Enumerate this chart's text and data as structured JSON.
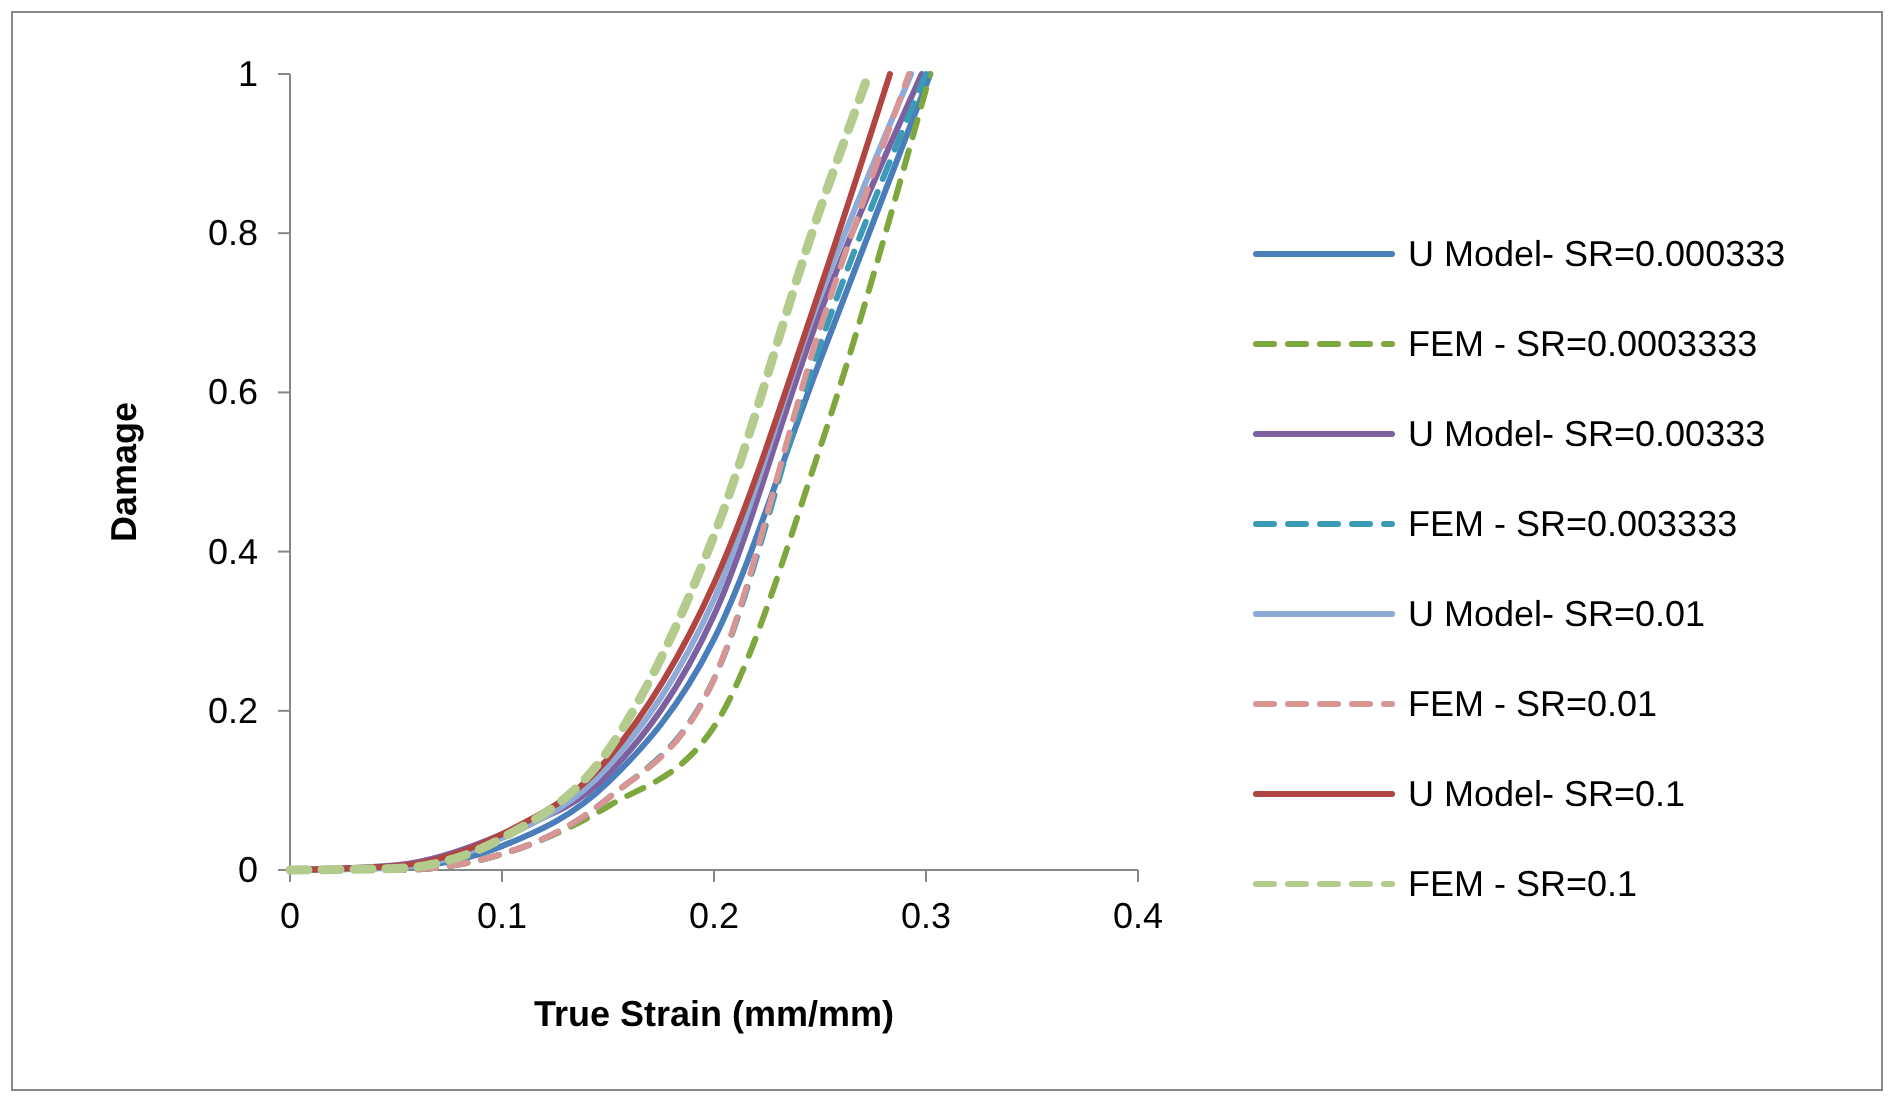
{
  "chart_data": {
    "type": "line",
    "xlabel": "True Strain (mm/mm)",
    "ylabel": "Damage",
    "xlim": [
      0,
      0.4
    ],
    "xticks": [
      0,
      0.1,
      0.2,
      0.3,
      0.4
    ],
    "ylim": [
      0,
      1
    ],
    "yticks": [
      0,
      0.2,
      0.4,
      0.6,
      0.8,
      1
    ],
    "grid": false,
    "legend": "right",
    "marker": "none",
    "series": [
      {
        "name": "U Model- SR=0.000333",
        "color": "#4a7ebb",
        "line_style": "solid",
        "x": [
          0,
          0.05,
          0.1,
          0.15,
          0.2,
          0.25,
          0.302
        ],
        "values": [
          0,
          0.003,
          0.03,
          0.11,
          0.29,
          0.64,
          1
        ]
      },
      {
        "name": "FEM - SR=0.0003333",
        "color": "#7ea83e",
        "line_style": "dashed",
        "x": [
          0,
          0.05,
          0.1,
          0.15,
          0.2,
          0.25,
          0.302
        ],
        "values": [
          0,
          0,
          0.02,
          0.08,
          0.18,
          0.53,
          1
        ]
      },
      {
        "name": "U Model- SR=0.00333",
        "color": "#7d60a0",
        "line_style": "solid",
        "x": [
          0,
          0.05,
          0.1,
          0.15,
          0.2,
          0.25,
          0.298
        ],
        "values": [
          0,
          0.006,
          0.045,
          0.12,
          0.32,
          0.7,
          1
        ]
      },
      {
        "name": "FEM - SR=0.003333",
        "color": "#3b9ab5",
        "line_style": "dashed",
        "x": [
          0,
          0.05,
          0.1,
          0.15,
          0.2,
          0.25,
          0.3
        ],
        "values": [
          0,
          0,
          0.02,
          0.09,
          0.24,
          0.66,
          1
        ]
      },
      {
        "name": "U Model- SR=0.01",
        "color": "#8eaad6",
        "line_style": "solid",
        "x": [
          0,
          0.05,
          0.1,
          0.15,
          0.2,
          0.25,
          0.293
        ],
        "values": [
          0,
          0.003,
          0.04,
          0.13,
          0.34,
          0.72,
          1
        ]
      },
      {
        "name": "FEM - SR=0.01",
        "color": "#d99594",
        "line_style": "dashed",
        "x": [
          0,
          0.05,
          0.1,
          0.15,
          0.2,
          0.25,
          0.292
        ],
        "values": [
          0,
          0,
          0.02,
          0.09,
          0.24,
          0.68,
          1
        ]
      },
      {
        "name": "U Model- SR=0.1",
        "color": "#b04542",
        "line_style": "solid",
        "x": [
          0,
          0.05,
          0.1,
          0.15,
          0.2,
          0.25,
          0.283
        ],
        "values": [
          0,
          0.005,
          0.045,
          0.14,
          0.36,
          0.73,
          1
        ]
      },
      {
        "name": "FEM - SR=0.1",
        "color": "#b3cc8e",
        "line_style": "dashed",
        "x": [
          0,
          0.05,
          0.1,
          0.15,
          0.2,
          0.25,
          0.273
        ],
        "values": [
          0,
          0.002,
          0.04,
          0.15,
          0.42,
          0.83,
          1
        ]
      }
    ]
  }
}
